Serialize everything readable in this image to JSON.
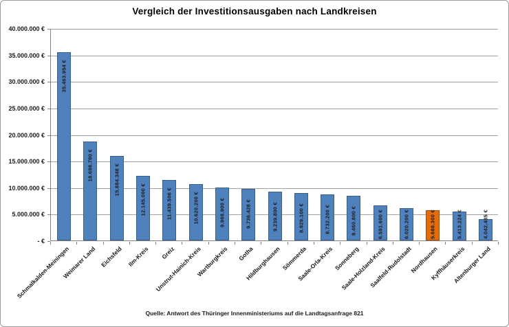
{
  "colors": {
    "bar_fill": "#4F81BD",
    "bar_border": "#385D8A",
    "highlight_fill": "#E46C0A",
    "highlight_border": "#9C4A06",
    "gridline": "#A0A0A0",
    "axis": "#808080",
    "label_text": "#1a1a1a"
  },
  "chart_data": {
    "type": "bar",
    "title": "Vergleich der Investitionsausgaben  nach Landkreisen",
    "source_note": "Quelle: Antwort des Thüringer Innenministeriums auf die Landtagsanfrage  821",
    "xlabel": "",
    "ylabel": "",
    "ylim": [
      0,
      40000000
    ],
    "grid": true,
    "legend": false,
    "highlight_index": 14,
    "y_tick_labels": [
      "40.000.000 €",
      "35.000.000 €",
      "30.000.000 €",
      "25.000.000 €",
      "20.000.000 €",
      "15.000.000 €",
      "10.000.000 €",
      "5.000.000 €",
      "-   €"
    ],
    "categories": [
      "Schmalkalden-Meiningen",
      "Weimarer Land",
      "Eichsfeld",
      "Ilm-Kreis",
      "Greiz",
      "Unstrut-Hainich-Kreis",
      "Wartburgkreis",
      "Gotha",
      "Hildburghausen",
      "Sömmerda",
      "Saale-Orla-Kreis",
      "Sonneberg",
      "Saale-Holzland-Kreis",
      "Saalfeld-Rudolstadt",
      "Nordhausen",
      "Kyffhäuserkreis",
      "Altenburger Land"
    ],
    "values": [
      35463954,
      18698780,
      15884348,
      12145000,
      11439506,
      10620200,
      9968900,
      9736428,
      9239800,
      8929100,
      8732200,
      8460800,
      6591600,
      6020200,
      5688300,
      5413224,
      4042485
    ],
    "value_labels": [
      "35.463.954 €",
      "18.698.780 €",
      "15.884.348 €",
      "12.145.000 €",
      "11.439.506 €",
      "10.620.200 €",
      "9.968.900 €",
      "9.736.428 €",
      "9.239.800 €",
      "8.929.100 €",
      "8.732.200 €",
      "8.460.800 €",
      "6.591.600 €",
      "6.020.200 €",
      "5.688.300 €",
      "5.413.224 €",
      "4.042.485 €"
    ]
  }
}
